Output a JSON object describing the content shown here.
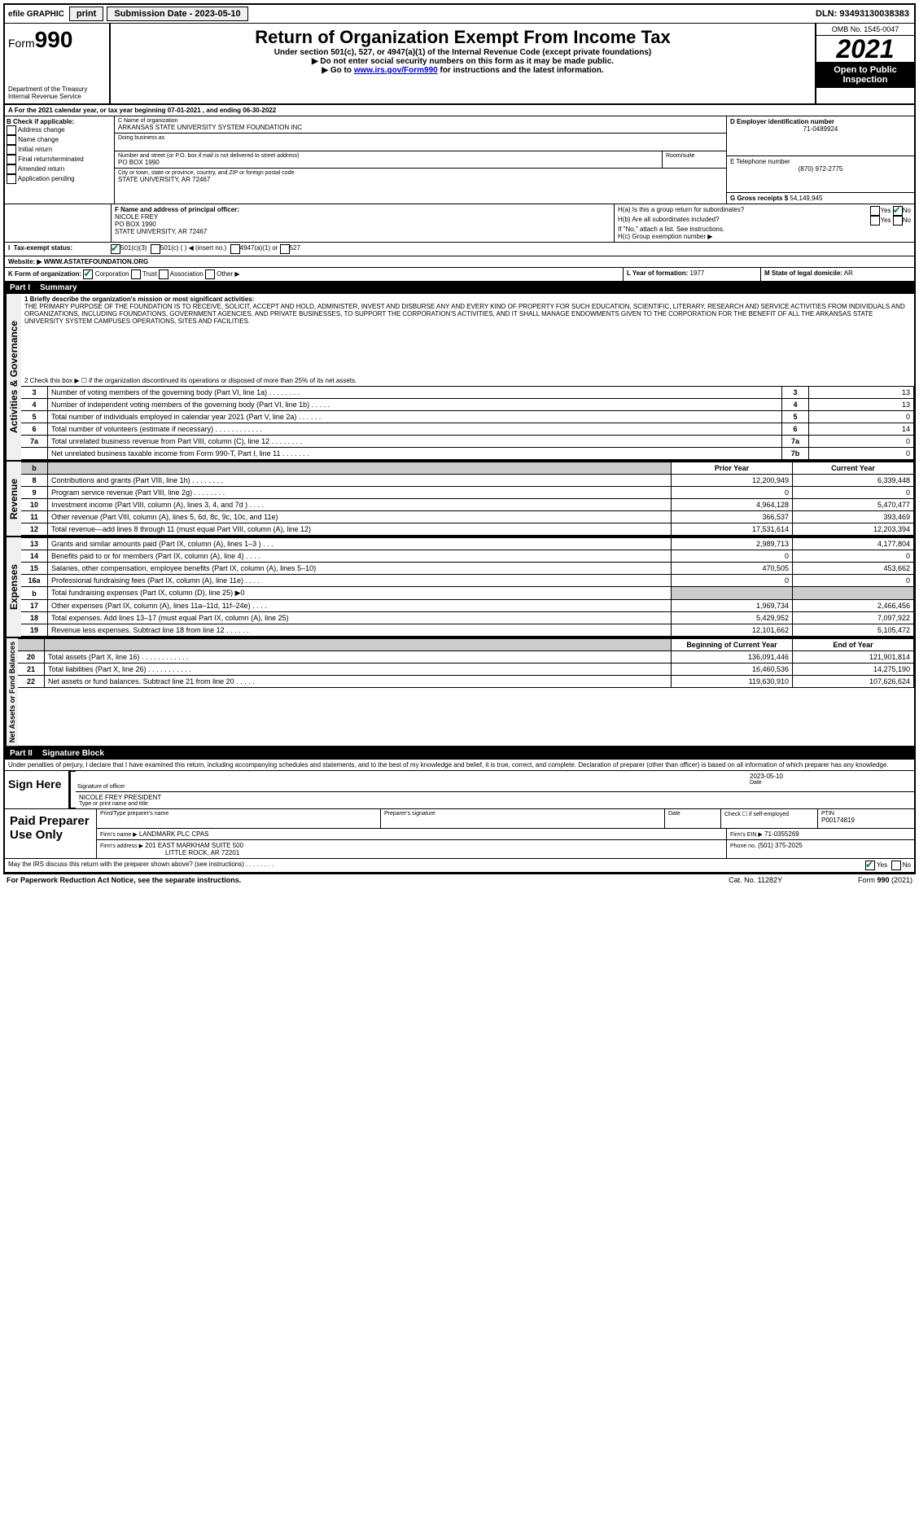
{
  "topbar": {
    "efile": "efile GRAPHIC",
    "print": "print",
    "subdate_label": "Submission Date - 2023-05-10",
    "dln": "DLN: 93493130038383"
  },
  "header": {
    "form_prefix": "Form",
    "form_no": "990",
    "dept": "Department of the Treasury",
    "irs": "Internal Revenue Service",
    "title": "Return of Organization Exempt From Income Tax",
    "sub1": "Under section 501(c), 527, or 4947(a)(1) of the Internal Revenue Code (except private foundations)",
    "sub2": "▶ Do not enter social security numbers on this form as it may be made public.",
    "sub3_pre": "▶ Go to ",
    "sub3_link": "www.irs.gov/Form990",
    "sub3_post": " for instructions and the latest information.",
    "omb": "OMB No. 1545-0047",
    "year": "2021",
    "open": "Open to Public Inspection"
  },
  "periodA": "A For the 2021 calendar year, or tax year beginning 07-01-2021 , and ending 06-30-2022",
  "boxB": {
    "label": "B Check if applicable:",
    "items": [
      "Address change",
      "Name change",
      "Initial return",
      "Final return/terminated",
      "Amended return",
      "Application pending"
    ]
  },
  "boxC": {
    "label": "C Name of organization",
    "name": "ARKANSAS STATE UNIVERSITY SYSTEM FOUNDATION INC",
    "dba_label": "Doing business as",
    "addr_label": "Number and street (or P.O. box if mail is not delivered to street address)",
    "addr": "PO BOX 1990",
    "room_label": "Room/suite",
    "city_label": "City or town, state or province, country, and ZIP or foreign postal code",
    "city": "STATE UNIVERSITY, AR  72467"
  },
  "boxD": {
    "label": "D Employer identification number",
    "val": "71-0489924"
  },
  "boxE": {
    "label": "E Telephone number",
    "val": "(870) 972-2775"
  },
  "boxG": {
    "label": "G Gross receipts $",
    "val": "54,149,945"
  },
  "boxF": {
    "label": "F Name and address of principal officer:",
    "name": "NICOLE FREY",
    "addr1": "PO BOX 1990",
    "addr2": "STATE UNIVERSITY, AR  72467"
  },
  "boxH": {
    "a": "H(a)  Is this a group return for subordinates?",
    "b": "H(b)  Are all subordinates included?",
    "note": "If \"No,\" attach a list. See instructions.",
    "c": "H(c)  Group exemption number ▶"
  },
  "taxI": {
    "label": "Tax-exempt status:",
    "o1": "501(c)(3)",
    "o2": "501(c) (  ) ◀ (insert no.)",
    "o3": "4947(a)(1) or",
    "o4": "527"
  },
  "J": {
    "label": "Website: ▶",
    "val": "WWW.ASTATEFOUNDATION.ORG"
  },
  "K": {
    "label": "K Form of organization:",
    "o1": "Corporation",
    "o2": "Trust",
    "o3": "Association",
    "o4": "Other ▶"
  },
  "L": {
    "label": "L Year of formation:",
    "val": "1977"
  },
  "M": {
    "label": "M State of legal domicile:",
    "val": "AR"
  },
  "part1": {
    "label": "Part I",
    "title": "Summary"
  },
  "mission_label": "1  Briefly describe the organization's mission or most significant activities:",
  "mission": "THE PRIMARY PURPOSE OF THE FOUNDATION IS TO RECEIVE, SOLICIT, ACCEPT AND HOLD, ADMINISTER, INVEST AND DISBURSE ANY AND EVERY KIND OF PROPERTY FOR SUCH EDUCATION, SCIENTIFIC, LITERARY, RESEARCH AND SERVICE ACTIVITIES FROM INDIVIDUALS AND ORGANIZATIONS, INCLUDING FOUNDATIONS, GOVERNMENT AGENCIES, AND PRIVATE BUSINESSES, TO SUPPORT THE CORPORATION'S ACTIVITIES, AND IT SHALL MANAGE ENDOWMENTS GIVEN TO THE CORPORATION FOR THE BENEFIT OF ALL THE ARKANSAS STATE UNIVERSITY SYSTEM CAMPUSES OPERATIONS, SITES AND FACILITIES.",
  "line2": "2  Check this box ▶ ☐ if the organization discontinued its operations or disposed of more than 25% of its net assets.",
  "gov_lines": [
    {
      "n": "3",
      "label": "Number of voting members of the governing body (Part VI, line 1a)  .    .    .    .    .    .    .    .",
      "box": "3",
      "val": "13"
    },
    {
      "n": "4",
      "label": "Number of independent voting members of the governing body (Part VI, line 1b)   .    .    .    .    .",
      "box": "4",
      "val": "13"
    },
    {
      "n": "5",
      "label": "Total number of individuals employed in calendar year 2021 (Part V, line 2a)   .    .    .    .    .    .",
      "box": "5",
      "val": "0"
    },
    {
      "n": "6",
      "label": "Total number of volunteers (estimate if necessary)   .    .    .    .    .    .    .    .    .    .    .    .",
      "box": "6",
      "val": "14"
    },
    {
      "n": "7a",
      "label": "Total unrelated business revenue from Part VIII, column (C), line 12   .    .    .    .    .    .    .    .",
      "box": "7a",
      "val": "0"
    },
    {
      "n": "",
      "label": "Net unrelated business taxable income from Form 990-T, Part I, line 11   .    .    .    .    .    .    .",
      "box": "7b",
      "val": "0"
    }
  ],
  "rev_hdr": {
    "b": "b",
    "prior": "Prior Year",
    "curr": "Current Year"
  },
  "rev_lines": [
    {
      "n": "8",
      "label": "Contributions and grants (Part VIII, line 1h)   .    .    .    .    .    .    .    .",
      "p": "12,200,949",
      "c": "6,339,448"
    },
    {
      "n": "9",
      "label": "Program service revenue (Part VIII, line 2g)   .    .    .    .    .    .    .    .",
      "p": "0",
      "c": "0"
    },
    {
      "n": "10",
      "label": "Investment income (Part VIII, column (A), lines 3, 4, and 7d )   .    .    .    .",
      "p": "4,964,128",
      "c": "5,470,477"
    },
    {
      "n": "11",
      "label": "Other revenue (Part VIII, column (A), lines 5, 6d, 8c, 9c, 10c, and 11e)",
      "p": "366,537",
      "c": "393,469"
    },
    {
      "n": "12",
      "label": "Total revenue—add lines 8 through 11 (must equal Part VIII, column (A), line 12)",
      "p": "17,531,614",
      "c": "12,203,394"
    }
  ],
  "exp_lines": [
    {
      "n": "13",
      "label": "Grants and similar amounts paid (Part IX, column (A), lines 1–3 )   .    .    .",
      "p": "2,989,713",
      "c": "4,177,804"
    },
    {
      "n": "14",
      "label": "Benefits paid to or for members (Part IX, column (A), line 4)   .    .    .    .",
      "p": "0",
      "c": "0"
    },
    {
      "n": "15",
      "label": "Salaries, other compensation, employee benefits (Part IX, column (A), lines 5–10)",
      "p": "470,505",
      "c": "453,662"
    },
    {
      "n": "16a",
      "label": "Professional fundraising fees (Part IX, column (A), line 11e)   .    .    .    .",
      "p": "0",
      "c": "0"
    },
    {
      "n": "b",
      "label": "Total fundraising expenses (Part IX, column (D), line 25) ▶0",
      "p": "",
      "c": "",
      "gray": true
    },
    {
      "n": "17",
      "label": "Other expenses (Part IX, column (A), lines 11a–11d, 11f–24e)   .    .    .    .",
      "p": "1,969,734",
      "c": "2,466,456"
    },
    {
      "n": "18",
      "label": "Total expenses. Add lines 13–17 (must equal Part IX, column (A), line 25)",
      "p": "5,429,952",
      "c": "7,097,922"
    },
    {
      "n": "19",
      "label": "Revenue less expenses. Subtract line 18 from line 12   .    .    .    .    .    .",
      "p": "12,101,662",
      "c": "5,105,472"
    }
  ],
  "net_hdr": {
    "p": "Beginning of Current Year",
    "c": "End of Year"
  },
  "net_lines": [
    {
      "n": "20",
      "label": "Total assets (Part X, line 16)   .    .    .    .    .    .    .    .    .    .    .    .",
      "p": "136,091,446",
      "c": "121,901,814"
    },
    {
      "n": "21",
      "label": "Total liabilities (Part X, line 26)   .    .    .    .    .    .    .    .    .    .    .",
      "p": "16,460,536",
      "c": "14,275,190"
    },
    {
      "n": "22",
      "label": "Net assets or fund balances. Subtract line 21 from line 20   .    .    .    .    .",
      "p": "119,630,910",
      "c": "107,626,624"
    }
  ],
  "part2": {
    "label": "Part II",
    "title": "Signature Block"
  },
  "perjury": "Under penalties of perjury, I declare that I have examined this return, including accompanying schedules and statements, and to the best of my knowledge and belief, it is true, correct, and complete. Declaration of preparer (other than officer) is based on all information of which preparer has any knowledge.",
  "sign": {
    "here": "Sign Here",
    "sig_label": "Signature of officer",
    "date": "2023-05-10",
    "date_label": "Date",
    "name": "NICOLE FREY PRESIDENT",
    "name_label": "Type or print name and title"
  },
  "paid": {
    "title": "Paid Preparer Use Only",
    "prep_name_label": "Print/Type preparer's name",
    "prep_sig_label": "Preparer's signature",
    "date_label": "Date",
    "check_label": "Check ☐ if self-employed",
    "ptin_label": "PTIN",
    "ptin": "P00174819",
    "firm_name_label": "Firm's name   ▶",
    "firm_name": "LANDMARK PLC CPAS",
    "firm_ein_label": "Firm's EIN ▶",
    "firm_ein": "71-0355269",
    "firm_addr_label": "Firm's address ▶",
    "firm_addr1": "201 EAST MARKHAM SUITE 500",
    "firm_addr2": "LITTLE ROCK, AR  72201",
    "phone_label": "Phone no.",
    "phone": "(501) 375-2025"
  },
  "bottom": {
    "discuss": "May the IRS discuss this return with the preparer shown above? (see instructions)   .    .    .    .    .    .    .    .",
    "yes": "Yes",
    "no": "No",
    "pra": "For Paperwork Reduction Act Notice, see the separate instructions.",
    "cat": "Cat. No. 11282Y",
    "form": "Form 990 (2021)"
  },
  "verts": {
    "gov": "Activities & Governance",
    "rev": "Revenue",
    "exp": "Expenses",
    "net": "Net Assets or Fund Balances"
  }
}
